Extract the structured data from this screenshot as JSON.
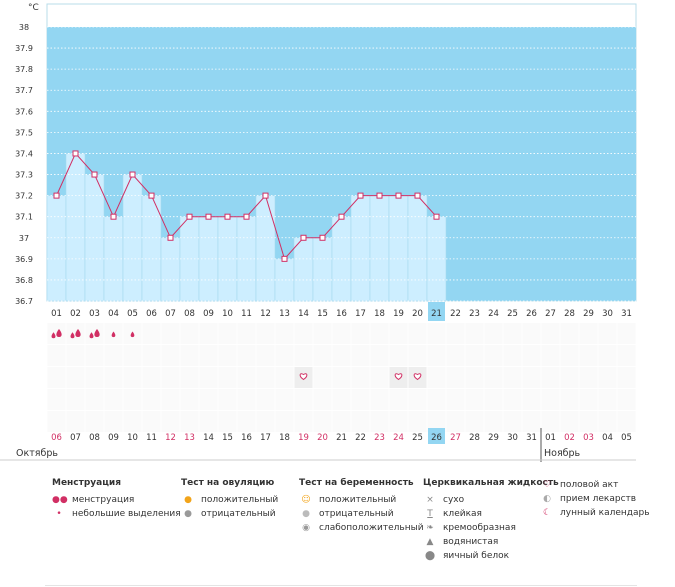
{
  "chart_data": {
    "type": "line",
    "unit": "°C",
    "ylim": [
      36.7,
      38
    ],
    "y_ticks": [
      "38",
      "37.9",
      "37.8",
      "37.7",
      "37.6",
      "37.5",
      "37.4",
      "37.3",
      "37.2",
      "37.1",
      "37",
      "36.9",
      "36.8",
      "36.7"
    ],
    "cycle_days": [
      "01",
      "02",
      "03",
      "04",
      "05",
      "06",
      "07",
      "08",
      "09",
      "10",
      "11",
      "12",
      "13",
      "14",
      "15",
      "16",
      "17",
      "18",
      "19",
      "20",
      "21",
      "22",
      "23",
      "24",
      "25",
      "26",
      "27",
      "28",
      "29",
      "30",
      "31"
    ],
    "current_cycle_day": "21",
    "temperatures": [
      37.2,
      37.4,
      37.3,
      37.1,
      37.3,
      37.2,
      37.0,
      37.1,
      37.1,
      37.1,
      37.1,
      37.2,
      36.9,
      37.0,
      37.0,
      37.1,
      37.2,
      37.2,
      37.2,
      37.2,
      37.1
    ],
    "calendar_dates": [
      "06",
      "07",
      "08",
      "09",
      "10",
      "11",
      "12",
      "13",
      "14",
      "15",
      "16",
      "17",
      "18",
      "19",
      "20",
      "21",
      "22",
      "23",
      "24",
      "25",
      "26",
      "27",
      "28",
      "29",
      "30",
      "31",
      "01",
      "02",
      "03",
      "04",
      "05"
    ],
    "calendar_date_colors": [
      "#d12f64",
      "#333333",
      "#333333",
      "#333333",
      "#333333",
      "#333333",
      "#d12f64",
      "#d12f64",
      "#333333",
      "#333333",
      "#333333",
      "#333333",
      "#333333",
      "#d12f64",
      "#d12f64",
      "#333333",
      "#333333",
      "#d12f64",
      "#d12f64",
      "#333333",
      "#333333",
      "#d12f64",
      "#333333",
      "#333333",
      "#333333",
      "#333333",
      "#333333",
      "#d12f64",
      "#d12f64",
      "#333333",
      "#333333"
    ],
    "current_calendar_index": 20,
    "menstruation_marks": [
      2,
      2,
      2,
      1,
      1
    ],
    "intercourse_days": [
      13,
      18,
      19
    ],
    "month_left": "Октябрь",
    "month_right": "Ноябрь",
    "month_split_index": 26,
    "colors": {
      "sky": "#93d6f2",
      "bar": "#cdeeff",
      "line": "#d12f64",
      "accent": "#d12f64"
    }
  },
  "legend": {
    "menstruation": {
      "title": "Менструация",
      "items": [
        {
          "label": "менструация",
          "icon": "drop-pair-icon"
        },
        {
          "label": "небольшие выделения",
          "icon": "small-drop-icon"
        }
      ]
    },
    "ovulation_test": {
      "title": "Тест на овуляцию",
      "items": [
        {
          "label": "положительный",
          "icon": "orange-circle-icon"
        },
        {
          "label": "отрицательный",
          "icon": "gray-circle-icon"
        }
      ]
    },
    "pregnancy_test": {
      "title": "Тест на беременность",
      "items": [
        {
          "label": "положительный",
          "icon": "orange-smile-icon"
        },
        {
          "label": "отрицательный",
          "icon": "gray-blob-icon"
        },
        {
          "label": "слабоположительный",
          "icon": "weak-blob-icon"
        }
      ]
    },
    "cervical_fluid": {
      "title": "Церквикальная жидкость",
      "items": [
        {
          "label": "сухо",
          "icon": "x-icon"
        },
        {
          "label": "клейкая",
          "icon": "t-icon"
        },
        {
          "label": "кремообразная",
          "icon": "cream-icon"
        },
        {
          "label": "водянистая",
          "icon": "water-drop-icon"
        },
        {
          "label": "яичный белок",
          "icon": "egg-white-icon"
        }
      ]
    },
    "other": {
      "items": [
        {
          "label": "половой акт",
          "icon": "heart-icon"
        },
        {
          "label": "прием лекарств",
          "icon": "pill-icon"
        },
        {
          "label": "лунный календарь",
          "icon": "moon-icon"
        }
      ]
    }
  }
}
